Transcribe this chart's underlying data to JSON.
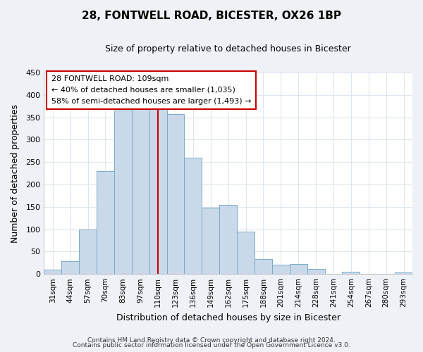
{
  "title1": "28, FONTWELL ROAD, BICESTER, OX26 1BP",
  "title2": "Size of property relative to detached houses in Bicester",
  "xlabel": "Distribution of detached houses by size in Bicester",
  "ylabel": "Number of detached properties",
  "footer1": "Contains HM Land Registry data © Crown copyright and database right 2024.",
  "footer2": "Contains public sector information licensed under the Open Government Licence v3.0.",
  "categories": [
    "31sqm",
    "44sqm",
    "57sqm",
    "70sqm",
    "83sqm",
    "97sqm",
    "110sqm",
    "123sqm",
    "136sqm",
    "149sqm",
    "162sqm",
    "175sqm",
    "188sqm",
    "201sqm",
    "214sqm",
    "228sqm",
    "241sqm",
    "254sqm",
    "267sqm",
    "280sqm",
    "293sqm"
  ],
  "values": [
    10,
    28,
    100,
    230,
    365,
    370,
    375,
    357,
    260,
    148,
    155,
    95,
    33,
    20,
    22,
    11,
    0,
    5,
    0,
    0,
    3
  ],
  "bar_color": "#c9d9ea",
  "bar_edge_color": "#7aaac8",
  "vline_color": "#cc0000",
  "vline_index": 6,
  "annotation_title": "28 FONTWELL ROAD: 109sqm",
  "annotation_line1": "← 40% of detached houses are smaller (1,035)",
  "annotation_line2": "58% of semi-detached houses are larger (1,493) →",
  "annotation_box_color": "#ffffff",
  "annotation_box_edge": "#cc0000",
  "ylim": [
    0,
    450
  ],
  "yticks": [
    0,
    50,
    100,
    150,
    200,
    250,
    300,
    350,
    400,
    450
  ],
  "plot_bg_color": "#ffffff",
  "fig_bg_color": "#eef2f7",
  "grid_color": "#dde6ef",
  "title1_fontsize": 11,
  "title2_fontsize": 9
}
